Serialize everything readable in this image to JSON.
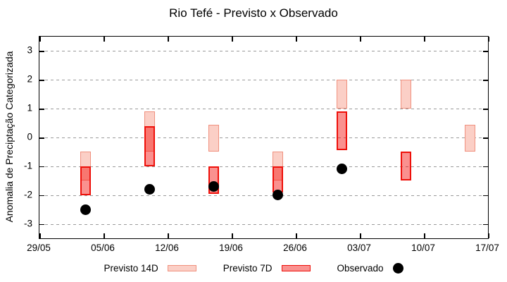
{
  "title": "Rio Tefé - Previsto x Observado",
  "y_axis": {
    "label": "Anomalia de Preciptação Categorizada",
    "tick_labels": [
      "3",
      "2",
      "1",
      "0",
      "-1",
      "-2",
      "-3"
    ]
  },
  "x_axis": {
    "tick_labels": [
      "29/05",
      "05/06",
      "12/06",
      "19/06",
      "26/06",
      "03/07",
      "10/07",
      "17/07"
    ]
  },
  "legend": {
    "items": [
      {
        "label": "Previsto 14D",
        "swatch": "box-light"
      },
      {
        "label": "Previsto 7D",
        "swatch": "box-dark"
      },
      {
        "label": "Observado",
        "swatch": "dot"
      }
    ]
  },
  "colors": {
    "p14_fill": "#fbcfc6",
    "p14_border": "#f0907e",
    "p7_fill": "rgba(244,12,7,0.45)",
    "p7_border": "#ee100a",
    "observed": "#000000",
    "grid": "#9a9a9a",
    "axis": "#000000",
    "background": "#ffffff"
  },
  "chart_data": {
    "type": "bar",
    "subtype": "floating-range-boxes-with-scatter",
    "title": "Rio Tefé - Previsto x Observado",
    "xlabel": "",
    "ylabel": "Anomalia de Preciptação Categorizada",
    "ylim": [
      -3.5,
      3.5
    ],
    "y_ticks": [
      3,
      2,
      1,
      0,
      -1,
      -2,
      -3
    ],
    "x_tick_dates": [
      "29/05",
      "05/06",
      "12/06",
      "19/06",
      "26/06",
      "03/07",
      "10/07",
      "17/07"
    ],
    "x_span_days": 49,
    "x_tick_step_days": 7,
    "grid": "horizontal-dashed",
    "legend_position": "below-plot",
    "series": [
      {
        "name": "Previsto 14D",
        "style": "box",
        "fill": "#fbcfc6",
        "border": "#f0907e",
        "border_width": 1.5,
        "points": [
          {
            "date": "03/06",
            "day": 5,
            "low": -1.5,
            "high": -0.5
          },
          {
            "date": "10/06",
            "day": 12,
            "low": -0.5,
            "high": 0.9
          },
          {
            "date": "17/06",
            "day": 19,
            "low": -0.5,
            "high": 0.45
          },
          {
            "date": "24/06",
            "day": 26,
            "low": -1.5,
            "high": -0.5
          },
          {
            "date": "01/07",
            "day": 33,
            "low": 1.0,
            "high": 2.0
          },
          {
            "date": "08/07",
            "day": 40,
            "low": 1.0,
            "high": 2.0
          },
          {
            "date": "15/07",
            "day": 47,
            "low": -0.5,
            "high": 0.45
          }
        ]
      },
      {
        "name": "Previsto 7D",
        "style": "box",
        "fill": "rgba(244,12,7,0.45)",
        "border": "#ee100a",
        "border_width": 2,
        "points": [
          {
            "date": "03/06",
            "day": 5,
            "low": -2.0,
            "high": -1.0
          },
          {
            "date": "10/06",
            "day": 12,
            "low": -1.0,
            "high": 0.4
          },
          {
            "date": "17/06",
            "day": 19,
            "low": -1.95,
            "high": -1.0
          },
          {
            "date": "24/06",
            "day": 26,
            "low": -1.9,
            "high": -1.0
          },
          {
            "date": "01/07",
            "day": 33,
            "low": -0.45,
            "high": 0.9
          },
          {
            "date": "08/07",
            "day": 40,
            "low": -1.5,
            "high": -0.5
          }
        ]
      },
      {
        "name": "Observado",
        "style": "scatter",
        "color": "#000000",
        "marker_diameter_px": 15,
        "points": [
          {
            "date": "03/06",
            "day": 5,
            "value": -2.5
          },
          {
            "date": "10/06",
            "day": 12,
            "value": -1.8
          },
          {
            "date": "17/06",
            "day": 19,
            "value": -1.7
          },
          {
            "date": "24/06",
            "day": 26,
            "value": -2.0
          },
          {
            "date": "01/07",
            "day": 33,
            "value": -1.1
          }
        ]
      }
    ]
  }
}
